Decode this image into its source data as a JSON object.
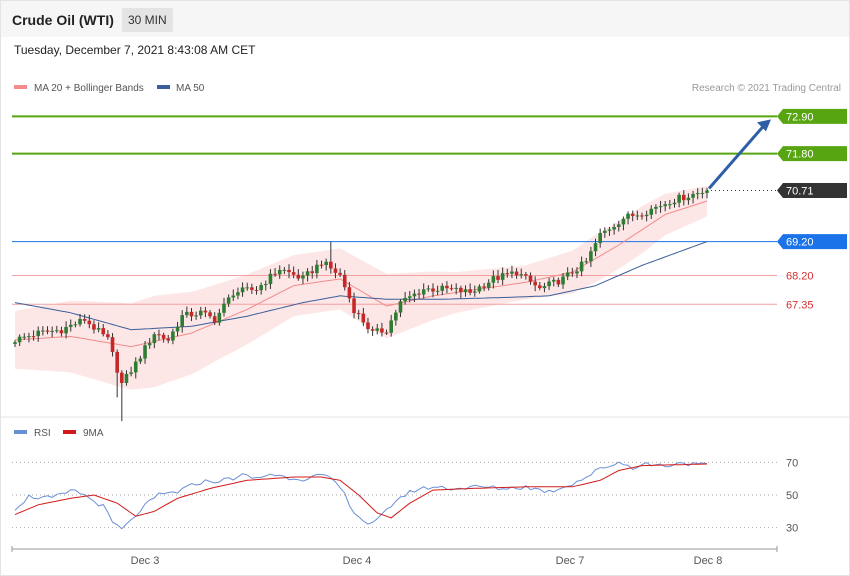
{
  "header": {
    "instrument": "Crude Oil (WTI)",
    "timeframe": "30 MIN",
    "timestamp": "Tuesday, December 7, 2021 8:43:08 AM CET"
  },
  "legend": {
    "ma20": "MA 20 + Bollinger Bands",
    "ma50": "MA 50",
    "rsi": "RSI",
    "rsi_ma": "9MA",
    "copyright": "Research © 2021 Trading Central"
  },
  "colors": {
    "up": "#2e7d32",
    "down": "#c62828",
    "band": "#fde2e2",
    "ma20": "#f28b8b",
    "ma50": "#3a5f9a",
    "resistance": "#58a512",
    "support": "#f2a0a0",
    "pivot": "#1a73e8",
    "last": "#333333",
    "arrow": "#2f5ea8",
    "rsi": "#6b8fd6",
    "rsi_ma": "#d11a1a"
  },
  "chart_data": [
    {
      "type": "candlestick",
      "x_ticks": [
        "Dec 3",
        "Dec 4",
        "Dec 7",
        "Dec 8"
      ],
      "ylim": [
        64.2,
        73.5
      ],
      "levels": [
        {
          "value": 72.9,
          "label": "72.90",
          "kind": "resistance"
        },
        {
          "value": 71.8,
          "label": "71.80",
          "kind": "resistance"
        },
        {
          "value": 70.71,
          "label": "70.71",
          "kind": "last"
        },
        {
          "value": 69.2,
          "label": "69.20",
          "kind": "pivot"
        },
        {
          "value": 68.2,
          "label": "68.20",
          "kind": "support"
        },
        {
          "value": 67.35,
          "label": "67.35",
          "kind": "support"
        }
      ],
      "close_anchors": [
        [
          0,
          66.3
        ],
        [
          5,
          66.5
        ],
        [
          10,
          66.6
        ],
        [
          15,
          66.9
        ],
        [
          20,
          66.3
        ],
        [
          23,
          65.0
        ],
        [
          26,
          65.6
        ],
        [
          30,
          66.5
        ],
        [
          33,
          66.3
        ],
        [
          36,
          67.0
        ],
        [
          40,
          67.1
        ],
        [
          43,
          66.9
        ],
        [
          47,
          67.7
        ],
        [
          52,
          67.8
        ],
        [
          57,
          68.4
        ],
        [
          62,
          68.1
        ],
        [
          66,
          68.6
        ],
        [
          70,
          68.2
        ],
        [
          73,
          67.2
        ],
        [
          77,
          66.5
        ],
        [
          80,
          66.6
        ],
        [
          83,
          67.4
        ],
        [
          88,
          67.8
        ],
        [
          93,
          67.8
        ],
        [
          98,
          67.7
        ],
        [
          103,
          68.1
        ],
        [
          108,
          68.3
        ],
        [
          113,
          67.8
        ],
        [
          118,
          68.1
        ],
        [
          123,
          68.6
        ],
        [
          126,
          69.4
        ],
        [
          131,
          69.9
        ],
        [
          136,
          70.1
        ],
        [
          141,
          70.4
        ],
        [
          146,
          70.6
        ],
        [
          149,
          70.71
        ]
      ],
      "ma20_anchors": [
        [
          0,
          66.3
        ],
        [
          12,
          66.4
        ],
        [
          25,
          66.1
        ],
        [
          38,
          66.5
        ],
        [
          50,
          67.2
        ],
        [
          60,
          67.9
        ],
        [
          70,
          68.1
        ],
        [
          80,
          67.3
        ],
        [
          90,
          67.6
        ],
        [
          100,
          67.8
        ],
        [
          110,
          68.0
        ],
        [
          120,
          68.3
        ],
        [
          130,
          69.1
        ],
        [
          140,
          70.0
        ],
        [
          149,
          70.4
        ]
      ],
      "ma50_anchors": [
        [
          0,
          67.4
        ],
        [
          12,
          67.1
        ],
        [
          25,
          66.6
        ],
        [
          38,
          66.7
        ],
        [
          50,
          67.0
        ],
        [
          62,
          67.4
        ],
        [
          70,
          67.6
        ],
        [
          80,
          67.5
        ],
        [
          92,
          67.5
        ],
        [
          105,
          67.55
        ],
        [
          115,
          67.6
        ],
        [
          125,
          67.9
        ],
        [
          135,
          68.5
        ],
        [
          145,
          69.0
        ],
        [
          149,
          69.2
        ]
      ],
      "band_width_anchors": [
        [
          0,
          0.85
        ],
        [
          20,
          1.2
        ],
        [
          30,
          1.35
        ],
        [
          45,
          1.1
        ],
        [
          60,
          0.9
        ],
        [
          70,
          0.9
        ],
        [
          80,
          0.95
        ],
        [
          95,
          0.6
        ],
        [
          110,
          0.5
        ],
        [
          125,
          0.7
        ],
        [
          135,
          0.7
        ],
        [
          149,
          0.45
        ]
      ],
      "extra_wick_lows": [
        [
          23,
          63.9
        ],
        [
          22,
          64.6
        ]
      ],
      "extra_wick_highs": [
        [
          68,
          69.2
        ]
      ]
    },
    {
      "type": "line",
      "name": "RSI",
      "ylim": [
        20,
        80
      ],
      "y_ticks": [
        30,
        50,
        70
      ],
      "rsi_anchors": [
        [
          0,
          42
        ],
        [
          3,
          49
        ],
        [
          8,
          48
        ],
        [
          13,
          53
        ],
        [
          16,
          48
        ],
        [
          19,
          43
        ],
        [
          21,
          33
        ],
        [
          23,
          29
        ],
        [
          25,
          34
        ],
        [
          27,
          41
        ],
        [
          31,
          50
        ],
        [
          35,
          52
        ],
        [
          40,
          58
        ],
        [
          45,
          59
        ],
        [
          49,
          62
        ],
        [
          52,
          60
        ],
        [
          55,
          63
        ],
        [
          58,
          61
        ],
        [
          62,
          60
        ],
        [
          66,
          62
        ],
        [
          69,
          58
        ],
        [
          71,
          50
        ],
        [
          73,
          40
        ],
        [
          75,
          34
        ],
        [
          77,
          32
        ],
        [
          79,
          37
        ],
        [
          82,
          47
        ],
        [
          86,
          53
        ],
        [
          90,
          55
        ],
        [
          95,
          54
        ],
        [
          100,
          55
        ],
        [
          105,
          54
        ],
        [
          110,
          55
        ],
        [
          115,
          52
        ],
        [
          120,
          57
        ],
        [
          123,
          61
        ],
        [
          126,
          66
        ],
        [
          130,
          70
        ],
        [
          133,
          67
        ],
        [
          136,
          69
        ],
        [
          140,
          68
        ],
        [
          144,
          70
        ],
        [
          147,
          68
        ],
        [
          149,
          69
        ]
      ],
      "rsi_ma_anchors": [
        [
          0,
          38
        ],
        [
          5,
          44
        ],
        [
          12,
          48
        ],
        [
          17,
          50
        ],
        [
          22,
          45
        ],
        [
          26,
          37
        ],
        [
          30,
          40
        ],
        [
          35,
          48
        ],
        [
          42,
          54
        ],
        [
          50,
          59
        ],
        [
          60,
          61
        ],
        [
          66,
          61
        ],
        [
          70,
          59
        ],
        [
          74,
          50
        ],
        [
          78,
          39
        ],
        [
          81,
          36
        ],
        [
          85,
          45
        ],
        [
          90,
          53
        ],
        [
          98,
          54
        ],
        [
          110,
          55
        ],
        [
          120,
          55
        ],
        [
          126,
          59
        ],
        [
          130,
          65
        ],
        [
          135,
          68
        ],
        [
          149,
          69
        ]
      ]
    }
  ]
}
